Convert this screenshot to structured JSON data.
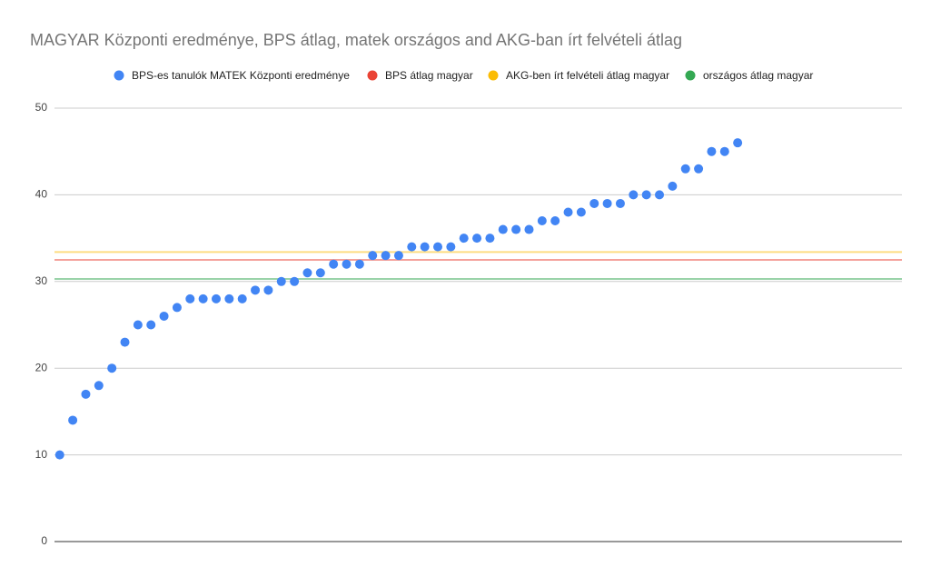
{
  "chart_data": {
    "type": "scatter",
    "title": "MAGYAR Központi eredménye, BPS átlag, matek országos and AKG-ban írt felvételi átlag",
    "x": [
      1,
      2,
      3,
      4,
      5,
      6,
      7,
      8,
      9,
      10,
      11,
      12,
      13,
      14,
      15,
      16,
      17,
      18,
      19,
      20,
      21,
      22,
      23,
      24,
      25,
      26,
      27,
      28,
      29,
      30,
      31,
      32,
      33,
      34,
      35,
      36,
      37,
      38,
      39,
      40,
      41,
      42,
      43,
      44,
      45,
      46,
      47,
      48,
      49,
      50,
      51,
      52,
      53
    ],
    "series": [
      {
        "name": "BPS-es tanulók MATEK Központi eredménye",
        "color": "#4285f4",
        "values": [
          10,
          14,
          17,
          18,
          20,
          23,
          25,
          25,
          26,
          27,
          28,
          28,
          28,
          28,
          28,
          29,
          29,
          30,
          30,
          31,
          31,
          32,
          32,
          32,
          33,
          33,
          33,
          34,
          34,
          34,
          34,
          35,
          35,
          35,
          36,
          36,
          36,
          37,
          37,
          38,
          38,
          39,
          39,
          39,
          40,
          40,
          40,
          41,
          43,
          43,
          45,
          45,
          46
        ]
      },
      {
        "name": "BPS átlag magyar",
        "color": "#ea4335",
        "value": 32.5
      },
      {
        "name": "AKG-ben írt felvételi átlag magyar",
        "color": "#fbbc04",
        "value": 33.4
      },
      {
        "name": "országos átlag magyar",
        "color": "#34a853",
        "value": 30.3
      }
    ],
    "xlim": [
      0.6,
      65.6
    ],
    "ylim": [
      0,
      50
    ],
    "yticks": [
      0,
      10,
      20,
      30,
      40,
      50
    ],
    "grid": true
  }
}
